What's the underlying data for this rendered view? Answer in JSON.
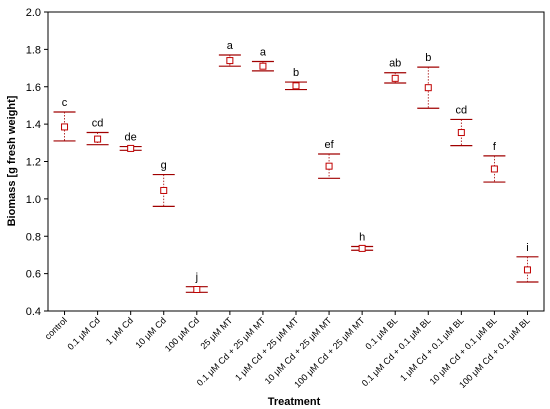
{
  "chart_data": {
    "type": "scatter",
    "xlabel": "Treatment",
    "ylabel": "Biomass [g fresh weight]",
    "ylim": [
      0.4,
      2.0
    ],
    "yticks": [
      "0.4",
      "0.6",
      "0.8",
      "1.0",
      "1.2",
      "1.4",
      "1.6",
      "1.8",
      "2.0"
    ],
    "categories": [
      "control",
      "0.1 μM Cd",
      "1 μM Cd",
      "10 μM Cd",
      "100 μM Cd",
      "25 μM MT",
      "0.1 μM Cd + 25 μM MT",
      "1 μM Cd + 25 μM MT",
      "10 μM Cd + 25 μM MT",
      "100 μM Cd + 25 μM MT",
      "0.1 μM BL",
      "0.1 μM Cd + 0.1 μM BL",
      "1 μM Cd + 0.1 μM BL",
      "10 μM Cd + 0.1 μM BL",
      "100 μM Cd + 0.1 μM BL"
    ],
    "series": [
      {
        "means": [
          1.385,
          1.32,
          1.27,
          1.045,
          0.515,
          1.74,
          1.71,
          1.605,
          1.175,
          0.735,
          1.645,
          1.595,
          1.355,
          1.16,
          0.62
        ],
        "upper": [
          1.465,
          1.355,
          1.28,
          1.13,
          0.53,
          1.77,
          1.735,
          1.625,
          1.24,
          0.745,
          1.675,
          1.705,
          1.425,
          1.23,
          0.69
        ],
        "lower": [
          1.31,
          1.29,
          1.26,
          0.96,
          0.5,
          1.71,
          1.685,
          1.585,
          1.11,
          0.725,
          1.62,
          1.485,
          1.285,
          1.09,
          0.555
        ],
        "letters": [
          "c",
          "cd",
          "de",
          "g",
          "j",
          "a",
          "a",
          "b",
          "ef",
          "h",
          "ab",
          "b",
          "cd",
          "f",
          "i"
        ]
      }
    ],
    "marker_color": "#c00000",
    "whisker_color": "#a00000",
    "grid": false,
    "legend": "none"
  }
}
